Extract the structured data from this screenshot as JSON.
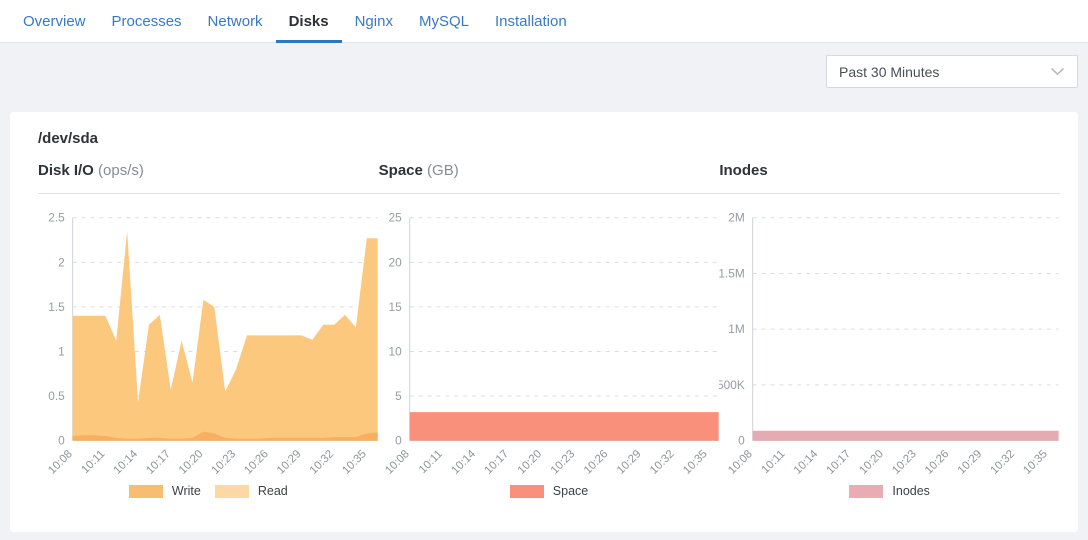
{
  "tabs": {
    "items": [
      {
        "label": "Overview",
        "active": false
      },
      {
        "label": "Processes",
        "active": false
      },
      {
        "label": "Network",
        "active": false
      },
      {
        "label": "Disks",
        "active": true
      },
      {
        "label": "Nginx",
        "active": false
      },
      {
        "label": "MySQL",
        "active": false
      },
      {
        "label": "Installation",
        "active": false
      }
    ]
  },
  "toolbar": {
    "time_range": "Past 30 Minutes"
  },
  "panel": {
    "device_title": "/dev/sda"
  },
  "colors": {
    "tab_link": "#3879C5",
    "tab_active_text": "#2B3136",
    "tab_active_underline": "#2E76C0",
    "background": "#F0F2F5",
    "write": "#F9BD71",
    "read": "#FCD9A4",
    "space": "#F9907B",
    "inodes": "#E8ACB2"
  },
  "chart_data": [
    {
      "type": "area",
      "title": "Disk I/O",
      "unit": "(ops/s)",
      "ylim": [
        0,
        2.5
      ],
      "yticks": [
        0,
        0.5,
        1,
        1.5,
        2,
        2.5
      ],
      "ytick_labels": [
        "0",
        "0.5",
        "1",
        "1.5",
        "2",
        "2.5"
      ],
      "x_ticks": [
        "10:08",
        "10:11",
        "10:14",
        "10:17",
        "10:20",
        "10:23",
        "10:26",
        "10:29",
        "10:32",
        "10:35"
      ],
      "tick_step": 3,
      "grid": "dashed",
      "legend_position": "bottom-center",
      "series": [
        {
          "name": "Write",
          "area_color": "#F7AF60",
          "legend_color": "#F9BD71",
          "values": [
            0.05,
            0.06,
            0.06,
            0.05,
            0.03,
            0.02,
            0.02,
            0.03,
            0.03,
            0.02,
            0.02,
            0.03,
            0.1,
            0.08,
            0.03,
            0.02,
            0.02,
            0.02,
            0.03,
            0.03,
            0.03,
            0.03,
            0.03,
            0.03,
            0.04,
            0.04,
            0.04,
            0.08,
            0.09
          ]
        },
        {
          "name": "Read",
          "area_color": "#FBC87E",
          "legend_color": "#FCD9A4",
          "values": [
            1.4,
            1.4,
            1.4,
            1.4,
            1.12,
            2.35,
            0.43,
            1.3,
            1.41,
            0.57,
            1.12,
            0.65,
            1.58,
            1.5,
            0.55,
            0.8,
            1.18,
            1.18,
            1.18,
            1.18,
            1.18,
            1.18,
            1.13,
            1.3,
            1.3,
            1.41,
            1.27,
            2.27,
            2.27
          ]
        }
      ]
    },
    {
      "type": "area",
      "title": "Space",
      "unit": "(GB)",
      "ylim": [
        0,
        25
      ],
      "yticks": [
        0,
        5,
        10,
        15,
        20,
        25
      ],
      "ytick_labels": [
        "0",
        "5",
        "10",
        "15",
        "20",
        "25"
      ],
      "x_ticks": [
        "10:08",
        "10:11",
        "10:14",
        "10:17",
        "10:20",
        "10:23",
        "10:26",
        "10:29",
        "10:32",
        "10:35"
      ],
      "tick_step": 3,
      "grid": "dashed",
      "legend_position": "bottom-center",
      "series": [
        {
          "name": "Space",
          "area_color": "#F9907B",
          "legend_color": "#F9907B",
          "values": [
            3.2,
            3.2,
            3.2,
            3.2,
            3.2,
            3.2,
            3.2,
            3.2,
            3.2,
            3.2,
            3.2,
            3.2,
            3.2,
            3.2,
            3.2,
            3.2,
            3.2,
            3.2,
            3.2,
            3.2,
            3.2,
            3.2,
            3.2,
            3.2,
            3.2,
            3.2,
            3.2,
            3.2,
            3.2
          ]
        }
      ]
    },
    {
      "type": "area",
      "title": "Inodes",
      "unit": "",
      "ylim": [
        0,
        2000000
      ],
      "yticks": [
        0,
        500000,
        1000000,
        1500000,
        2000000
      ],
      "ytick_labels": [
        "0",
        "500K",
        "1M",
        "1.5M",
        "2M"
      ],
      "x_ticks": [
        "10:08",
        "10:11",
        "10:14",
        "10:17",
        "10:20",
        "10:23",
        "10:26",
        "10:29",
        "10:32",
        "10:35"
      ],
      "tick_step": 3,
      "grid": "dashed",
      "legend_position": "bottom-center",
      "series": [
        {
          "name": "Inodes",
          "area_color": "#E5ABB2",
          "legend_color": "#E8ACB2",
          "values": [
            88000,
            88000,
            88000,
            88000,
            88000,
            88000,
            88000,
            88000,
            88000,
            88000,
            88000,
            88000,
            88000,
            88000,
            88000,
            88000,
            88000,
            88000,
            88000,
            88000,
            88000,
            88000,
            88000,
            88000,
            88000,
            88000,
            88000,
            88000,
            88000
          ]
        }
      ]
    }
  ]
}
